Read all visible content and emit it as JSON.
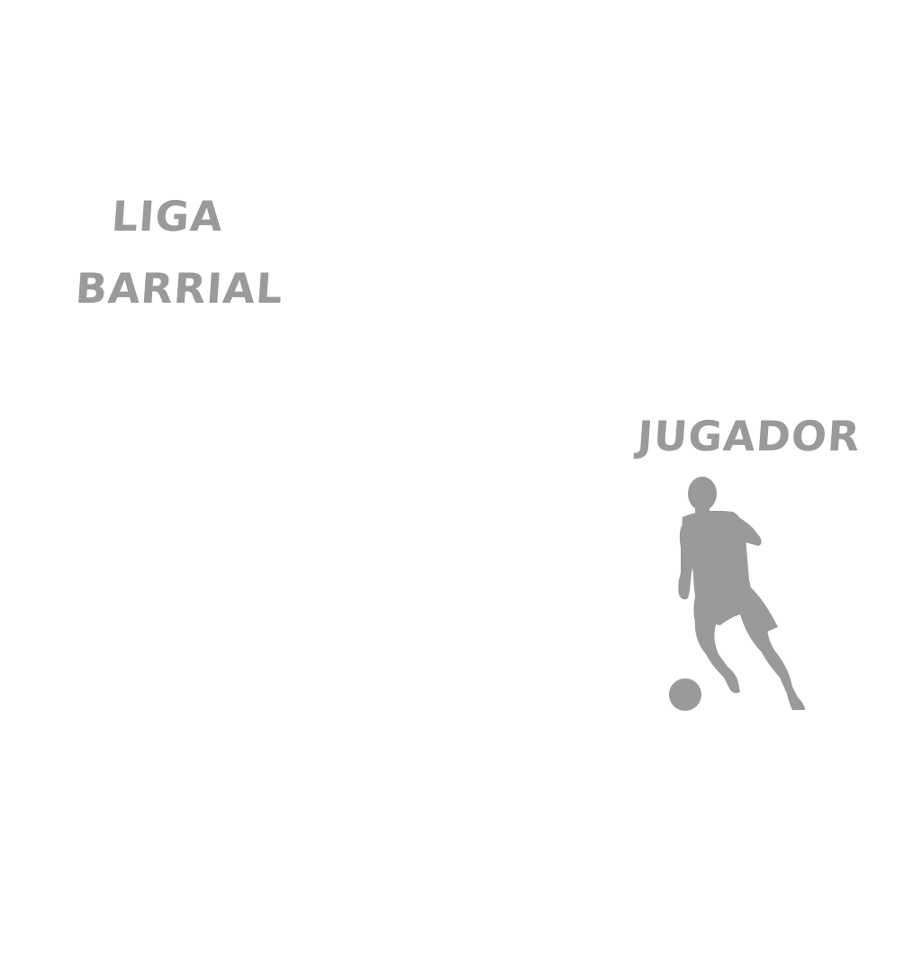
{
  "title": {
    "line1": "LIGA",
    "line2": "BARRIAL"
  },
  "player": {
    "label": "JUGADOR",
    "icon": "soccer-player-silhouette-icon",
    "color": "#9a9a9a"
  }
}
